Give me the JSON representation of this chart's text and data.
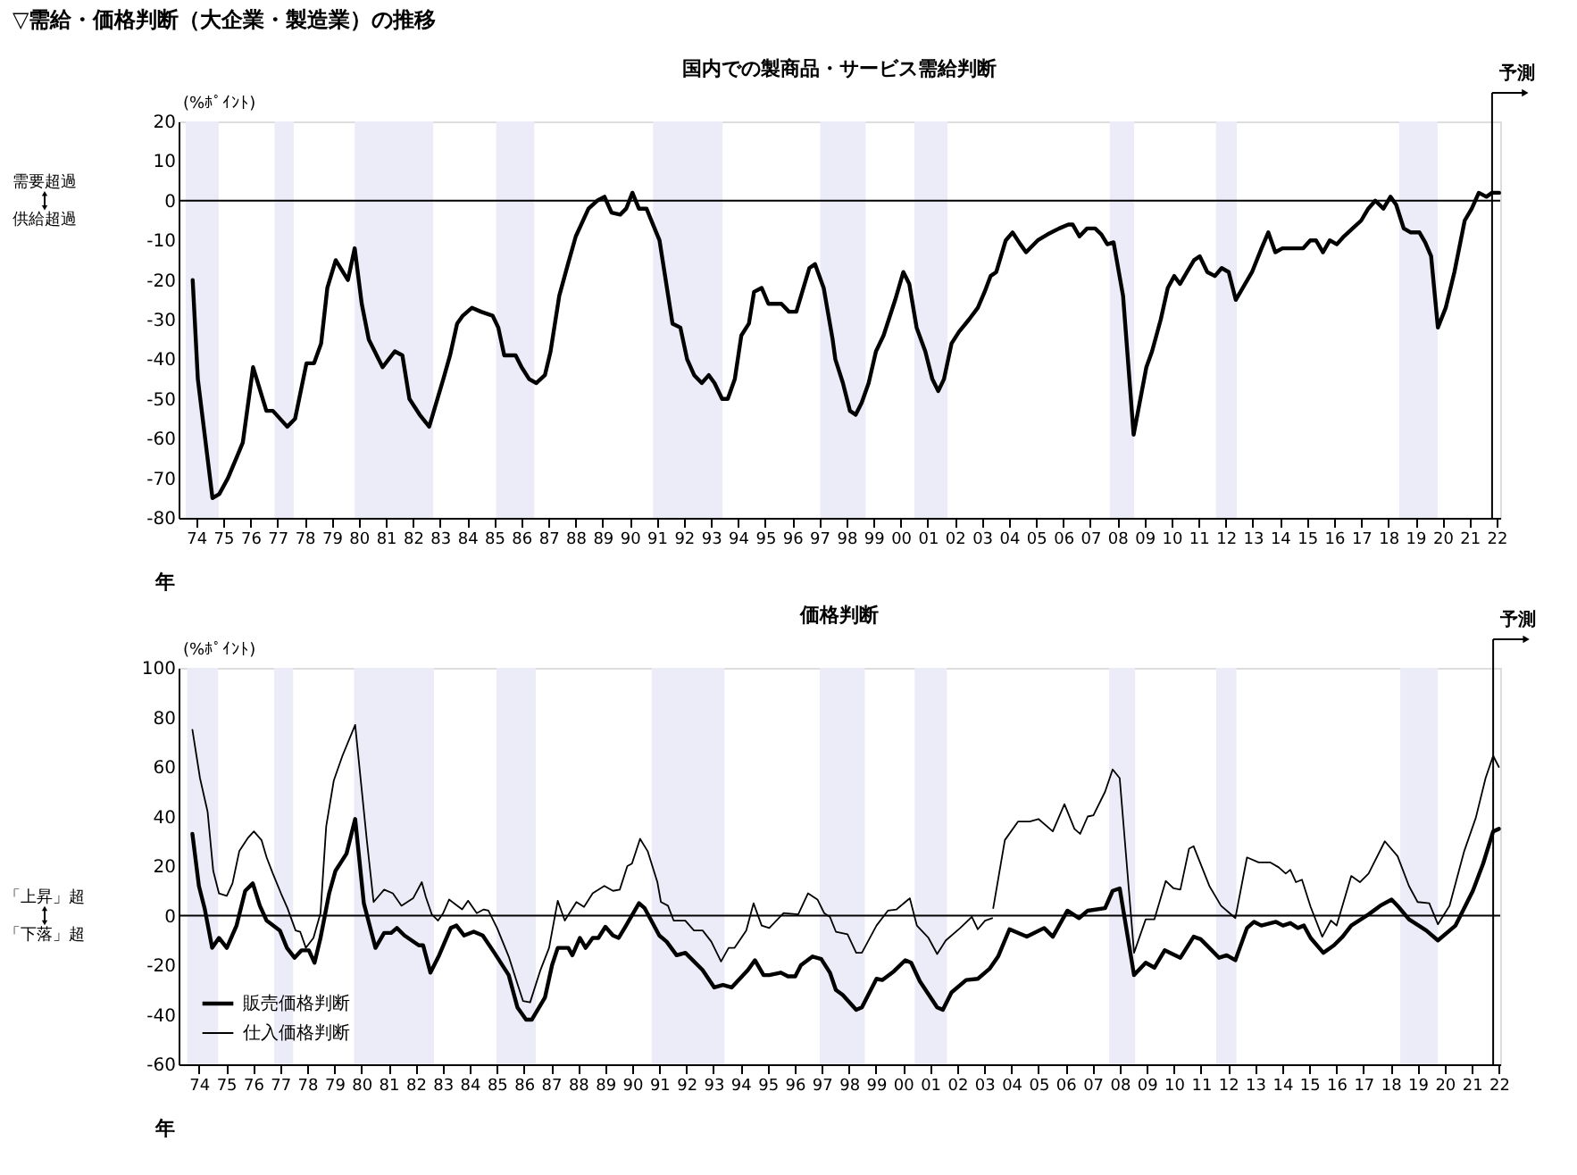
{
  "chart_data": [
    {
      "type": "line",
      "title": "国内での製商品・サービス需給判断",
      "ylabel": "(%ﾎﾟｲﾝﾄ)",
      "xlabel": "年",
      "annotations": [
        "▽需給・価格判断（大企業・製造業）の推移",
        "需要超過",
        "供給超過"
      ],
      "xlim": [
        1973.35,
        2022.13
      ],
      "ylim": [
        -80,
        20
      ],
      "yticks": [
        -80,
        -70,
        -60,
        -50,
        -40,
        -30,
        -20,
        -10,
        0,
        10,
        20
      ],
      "xticks": [
        {
          "value": 1974,
          "label": "74"
        },
        {
          "value": 1975,
          "label": "75"
        },
        {
          "value": 1976,
          "label": "76"
        },
        {
          "value": 1977,
          "label": "77"
        },
        {
          "value": 1978,
          "label": "78"
        },
        {
          "value": 1979,
          "label": "79"
        },
        {
          "value": 1980,
          "label": "80"
        },
        {
          "value": 1981,
          "label": "81"
        },
        {
          "value": 1982,
          "label": "82"
        },
        {
          "value": 1983,
          "label": "83"
        },
        {
          "value": 1984,
          "label": "84"
        },
        {
          "value": 1985,
          "label": "85"
        },
        {
          "value": 1986,
          "label": "86"
        },
        {
          "value": 1987,
          "label": "87"
        },
        {
          "value": 1988,
          "label": "88"
        },
        {
          "value": 1989,
          "label": "89"
        },
        {
          "value": 1990,
          "label": "90"
        },
        {
          "value": 1991,
          "label": "91"
        },
        {
          "value": 1992,
          "label": "92"
        },
        {
          "value": 1993,
          "label": "93"
        },
        {
          "value": 1994,
          "label": "94"
        },
        {
          "value": 1995,
          "label": "95"
        },
        {
          "value": 1996,
          "label": "96"
        },
        {
          "value": 1997,
          "label": "97"
        },
        {
          "value": 1998,
          "label": "98"
        },
        {
          "value": 1999,
          "label": "99"
        },
        {
          "value": 2000,
          "label": "00"
        },
        {
          "value": 2001,
          "label": "01"
        },
        {
          "value": 2002,
          "label": "02"
        },
        {
          "value": 2003,
          "label": "03"
        },
        {
          "value": 2004,
          "label": "04"
        },
        {
          "value": 2005,
          "label": "05"
        },
        {
          "value": 2006,
          "label": "06"
        },
        {
          "value": 2007,
          "label": "07"
        },
        {
          "value": 2008,
          "label": "08"
        },
        {
          "value": 2009,
          "label": "09"
        },
        {
          "value": 2010,
          "label": "10"
        },
        {
          "value": 2011,
          "label": "11"
        },
        {
          "value": 2012,
          "label": "12"
        },
        {
          "value": 2013,
          "label": "13"
        },
        {
          "value": 2014,
          "label": "14"
        },
        {
          "value": 2015,
          "label": "15"
        },
        {
          "value": 2016,
          "label": "16"
        },
        {
          "value": 2017,
          "label": "17"
        },
        {
          "value": 2018,
          "label": "18"
        },
        {
          "value": 2019,
          "label": "19"
        },
        {
          "value": 2020,
          "label": "20"
        },
        {
          "value": 2021,
          "label": "21"
        },
        {
          "value": 2022,
          "label": "22"
        }
      ],
      "grid": false,
      "legend": false,
      "series": [
        {
          "color": "#000000",
          "x": [
            1973.87,
            1974.06,
            1974.6,
            1974.85,
            1975.17,
            1975.54,
            1975.72,
            1976.1,
            1976.59,
            1976.83,
            1977.36,
            1977.65,
            1978.07,
            1978.35,
            1978.61,
            1978.84,
            1979.15,
            1979.6,
            1979.85,
            1980.11,
            1980.37,
            1980.88,
            1981.33,
            1981.61,
            1981.87,
            1982.25,
            1982.6,
            1983.12,
            1983.37,
            1983.63,
            1983.84,
            1984.18,
            1984.51,
            1984.94,
            1985.15,
            1985.37,
            1985.79,
            1986.01,
            1986.29,
            1986.55,
            1986.87,
            1987.08,
            1987.4,
            1987.72,
            1988.01,
            1988.48,
            1988.8,
            1989.07,
            1989.33,
            1989.65,
            1989.87,
            1990.1,
            1990.34,
            1990.62,
            1991.1,
            1991.58,
            1991.87,
            1992.12,
            1992.38,
            1992.66,
            1992.92,
            1993.13,
            1993.41,
            1993.62,
            1993.88,
            1994.12,
            1994.4,
            1994.59,
            1994.87,
            1995.12,
            1995.6,
            1995.88,
            1996.15,
            1996.63,
            1996.84,
            1997.16,
            1997.49,
            1997.59,
            1997.87,
            1998.13,
            1998.34,
            1998.56,
            1998.82,
            1999.09,
            1999.37,
            1999.8,
            2000.1,
            2000.32,
            2000.59,
            2000.91,
            2001.17,
            2001.39,
            2001.6,
            2001.88,
            2002.16,
            2002.52,
            2002.85,
            2003.1,
            2003.32,
            2003.53,
            2003.88,
            2004.13,
            2004.42,
            2004.63,
            2005.06,
            2005.42,
            2005.85,
            2006.19,
            2006.35,
            2006.6,
            2006.88,
            2007.18,
            2007.41,
            2007.63,
            2007.86,
            2008.21,
            2008.6,
            2009.07,
            2009.28,
            2009.6,
            2009.86,
            2010.1,
            2010.31,
            2010.57,
            2010.83,
            2011.04,
            2011.32,
            2011.6,
            2011.85,
            2012.11,
            2012.37,
            2012.63,
            2012.97,
            2013.32,
            2013.57,
            2013.83,
            2014.09,
            2014.86,
            2015.12,
            2015.33,
            2015.59,
            2015.84,
            2016.1,
            2016.36,
            2016.68,
            2017.0,
            2017.26,
            2017.52,
            2017.82,
            2018.08,
            2018.29,
            2018.57,
            2018.83,
            2019.15,
            2019.36,
            2019.58,
            2019.83,
            2020.12,
            2020.44,
            2020.82,
            2021.08,
            2021.34,
            2021.62,
            2021.83,
            2022.09
          ],
          "values": [
            -20,
            -45,
            -75,
            -74,
            -70,
            -64,
            -61,
            -42,
            -53,
            -53,
            -57,
            -55,
            -41,
            -41,
            -36,
            -22,
            -15,
            -20,
            -12,
            -26,
            -35,
            -42,
            -38,
            -39,
            -50,
            -54,
            -57,
            -45,
            -39,
            -31,
            -29,
            -27,
            -28,
            -29,
            -32,
            -39,
            -39,
            -42,
            -45,
            -46,
            -44,
            -38,
            -24,
            -16,
            -9,
            -2,
            0,
            1,
            -3,
            -3.5,
            -2,
            2,
            -2,
            -2,
            -10,
            -31,
            -32,
            -40,
            -44,
            -46,
            -44,
            -46,
            -50,
            -50,
            -45,
            -34,
            -31,
            -23,
            -22,
            -26,
            -26,
            -28,
            -28,
            -17,
            -16,
            -22,
            -35,
            -40,
            -46,
            -53,
            -54,
            -51,
            -46,
            -38,
            -34,
            -25,
            -18,
            -21,
            -32,
            -38,
            -45,
            -48,
            -45,
            -36,
            -33,
            -30,
            -27,
            -23,
            -19,
            -18,
            -10,
            -8,
            -11,
            -13,
            -10,
            -8.5,
            -7,
            -6,
            -6,
            -9,
            -7,
            -7,
            -8.5,
            -11,
            -10.5,
            -24,
            -59,
            -42,
            -38,
            -30,
            -22,
            -19,
            -21,
            -18,
            -15,
            -14,
            -18,
            -19,
            -17,
            -18,
            -25,
            -22,
            -18,
            -12,
            -8,
            -13,
            -12,
            -12,
            -10,
            -10,
            -13,
            -10,
            -11,
            -9,
            -7,
            -5,
            -2,
            0,
            -2,
            1,
            -1,
            -7,
            -8,
            -8,
            -10.5,
            -14,
            -32,
            -27,
            -18,
            -5,
            -2,
            2,
            1,
            2,
            2
          ]
        }
      ],
      "bands": [
        {
          "axis": "x",
          "from": 1973.61,
          "to": 1974.83,
          "color": "#ececf8"
        },
        {
          "axis": "x",
          "from": 1976.89,
          "to": 1977.6,
          "color": "#ececf8"
        },
        {
          "axis": "x",
          "from": 1979.85,
          "to": 1982.75,
          "color": "#ececf8"
        },
        {
          "axis": "x",
          "from": 1985.07,
          "to": 1986.48,
          "color": "#ececf8"
        },
        {
          "axis": "x",
          "from": 1990.86,
          "to": 1993.43,
          "color": "#ececf8"
        },
        {
          "axis": "x",
          "from": 1997.03,
          "to": 1998.71,
          "color": "#ececf8"
        },
        {
          "axis": "x",
          "from": 2000.51,
          "to": 2001.73,
          "color": "#ececf8"
        },
        {
          "axis": "x",
          "from": 2007.72,
          "to": 2008.62,
          "color": "#ececf8"
        },
        {
          "axis": "x",
          "from": 2011.64,
          "to": 2012.41,
          "color": "#ececf8"
        },
        {
          "axis": "x",
          "from": 2018.4,
          "to": 2019.82,
          "color": "#ececf8"
        }
      ],
      "ref_lines": [
        {
          "axis": "y",
          "value": 0,
          "color": "#000000"
        },
        {
          "axis": "x",
          "value": 2021.83,
          "label": "予測",
          "color": "#000000"
        }
      ]
    },
    {
      "type": "line",
      "title": "価格判断",
      "ylabel": "(%ﾎﾟｲﾝﾄ)",
      "xlabel": "年",
      "annotations": [
        "「上昇」超",
        "「下落」超"
      ],
      "xlim": [
        1973.25,
        2022.05
      ],
      "ylim": [
        -60,
        100
      ],
      "yticks": [
        -60,
        -40,
        -20,
        0,
        20,
        40,
        60,
        80,
        100
      ],
      "xticks": [
        {
          "value": 1974,
          "label": "74"
        },
        {
          "value": 1975,
          "label": "75"
        },
        {
          "value": 1976,
          "label": "76"
        },
        {
          "value": 1977,
          "label": "77"
        },
        {
          "value": 1978,
          "label": "78"
        },
        {
          "value": 1979,
          "label": "79"
        },
        {
          "value": 1980,
          "label": "80"
        },
        {
          "value": 1981,
          "label": "81"
        },
        {
          "value": 1982,
          "label": "82"
        },
        {
          "value": 1983,
          "label": "83"
        },
        {
          "value": 1984,
          "label": "84"
        },
        {
          "value": 1985,
          "label": "85"
        },
        {
          "value": 1986,
          "label": "86"
        },
        {
          "value": 1987,
          "label": "87"
        },
        {
          "value": 1988,
          "label": "88"
        },
        {
          "value": 1989,
          "label": "89"
        },
        {
          "value": 1990,
          "label": "90"
        },
        {
          "value": 1991,
          "label": "91"
        },
        {
          "value": 1992,
          "label": "92"
        },
        {
          "value": 1993,
          "label": "93"
        },
        {
          "value": 1994,
          "label": "94"
        },
        {
          "value": 1995,
          "label": "95"
        },
        {
          "value": 1996,
          "label": "96"
        },
        {
          "value": 1997,
          "label": "97"
        },
        {
          "value": 1998,
          "label": "98"
        },
        {
          "value": 1999,
          "label": "99"
        },
        {
          "value": 2000,
          "label": "00"
        },
        {
          "value": 2001,
          "label": "01"
        },
        {
          "value": 2002,
          "label": "02"
        },
        {
          "value": 2003,
          "label": "03"
        },
        {
          "value": 2004,
          "label": "04"
        },
        {
          "value": 2005,
          "label": "05"
        },
        {
          "value": 2006,
          "label": "06"
        },
        {
          "value": 2007,
          "label": "07"
        },
        {
          "value": 2008,
          "label": "08"
        },
        {
          "value": 2009,
          "label": "09"
        },
        {
          "value": 2010,
          "label": "10"
        },
        {
          "value": 2011,
          "label": "11"
        },
        {
          "value": 2012,
          "label": "12"
        },
        {
          "value": 2013,
          "label": "13"
        },
        {
          "value": 2014,
          "label": "14"
        },
        {
          "value": 2015,
          "label": "15"
        },
        {
          "value": 2016,
          "label": "16"
        },
        {
          "value": 2017,
          "label": "17"
        },
        {
          "value": 2018,
          "label": "18"
        },
        {
          "value": 2019,
          "label": "19"
        },
        {
          "value": 2020,
          "label": "20"
        },
        {
          "value": 2021,
          "label": "21"
        },
        {
          "value": 2022,
          "label": "22"
        }
      ],
      "grid": false,
      "legend": "bottom left",
      "series": [
        {
          "name": "販売価格判断",
          "color": "#000000",
          "x": [
            1973.76,
            1974.0,
            1974.21,
            1974.49,
            1974.74,
            1975.03,
            1975.39,
            1975.71,
            1975.99,
            1976.25,
            1976.5,
            1976.99,
            1977.25,
            1977.53,
            1977.79,
            1978.06,
            1978.27,
            1978.49,
            1978.81,
            1979.04,
            1979.45,
            1979.77,
            1980.09,
            1980.52,
            1980.84,
            1981.1,
            1981.31,
            1981.59,
            1982.12,
            1982.28,
            1982.55,
            1982.87,
            1983.3,
            1983.51,
            1983.79,
            1984.15,
            1984.48,
            1984.91,
            1985.44,
            1985.76,
            1986.08,
            1986.29,
            1986.78,
            1987.04,
            1987.25,
            1987.64,
            1987.79,
            1988.07,
            1988.28,
            1988.54,
            1988.75,
            1989.01,
            1989.29,
            1989.5,
            1989.72,
            1990.25,
            1990.46,
            1991.0,
            1991.27,
            1991.64,
            1991.96,
            1992.6,
            1993.03,
            1993.35,
            1993.67,
            1994.27,
            1994.53,
            1994.85,
            1995.06,
            1995.49,
            1995.75,
            1996.02,
            1996.23,
            1996.66,
            1996.98,
            1997.3,
            1997.52,
            1997.77,
            1998.27,
            1998.48,
            1999.02,
            1999.23,
            1999.66,
            2000.08,
            2000.3,
            2000.62,
            2001.26,
            2001.47,
            2001.79,
            2002.33,
            2002.76,
            2003.19,
            2003.51,
            2003.93,
            2004.57,
            2005.21,
            2005.53,
            2006.07,
            2006.5,
            2006.82,
            2007.46,
            2007.74,
            2008.0,
            2008.53,
            2008.96,
            2009.28,
            2009.66,
            2010.24,
            2010.73,
            2010.99,
            2011.31,
            2011.67,
            2011.95,
            2012.27,
            2012.7,
            2012.96,
            2013.23,
            2013.77,
            2014.03,
            2014.3,
            2014.58,
            2014.8,
            2015.05,
            2015.52,
            2015.91,
            2016.23,
            2016.55,
            2017.19,
            2017.62,
            2018.04,
            2018.26,
            2018.68,
            2019.32,
            2019.75,
            2020.4,
            2021.04,
            2021.42,
            2021.79,
            2022.0
          ],
          "values": [
            33,
            12,
            3,
            -13,
            -9,
            -13,
            -4,
            10,
            13,
            4,
            -2,
            -6,
            -13,
            -17,
            -14,
            -14,
            -19,
            -9,
            9,
            18,
            25,
            39,
            5,
            -13,
            -7,
            -7,
            -5,
            -8,
            -12,
            -12,
            -23,
            -16,
            -5,
            -4,
            -8,
            -6.5,
            -8,
            -15,
            -24,
            -37,
            -42,
            -42,
            -33,
            -20,
            -13,
            -13,
            -16,
            -9,
            -13,
            -9,
            -9,
            -4.5,
            -8,
            -9,
            -5,
            5,
            3,
            -8,
            -10.5,
            -16,
            -15,
            -22,
            -29,
            -28,
            -29,
            -22,
            -18,
            -24,
            -24,
            -23,
            -24.5,
            -24.5,
            -20,
            -16.5,
            -17.5,
            -23,
            -30,
            -32,
            -38,
            -37,
            -25.5,
            -26,
            -22.5,
            -18,
            -19,
            -26.5,
            -37,
            -38,
            -31,
            -26,
            -25.5,
            -21.5,
            -16.5,
            -5.5,
            -8.5,
            -5,
            -8.5,
            2,
            -1,
            2,
            3,
            10,
            11,
            -24,
            -19,
            -21,
            -14,
            -17,
            -8.5,
            -9.5,
            -13,
            -17,
            -16,
            -18,
            -5,
            -2.5,
            -4,
            -2.5,
            -4,
            -3,
            -5,
            -4,
            -9,
            -15,
            -12,
            -8.5,
            -4,
            0.5,
            4,
            6.5,
            4,
            -1.5,
            -6,
            -10,
            -4,
            10,
            21,
            34,
            35
          ]
        },
        {
          "name": "仕入価格判断",
          "color": "#000000",
          "x": [
            1973.76,
            1974.04,
            1974.32,
            1974.53,
            1974.74,
            1975.03,
            1975.24,
            1975.49,
            1975.82,
            1976.03,
            1976.31,
            1976.5,
            1976.73,
            1977.03,
            1977.27,
            1977.57,
            1977.74,
            1977.95,
            1978.23,
            1978.49,
            1978.7,
            1978.98,
            1979.3,
            1979.77,
            1980.2,
            1980.45,
            1980.84,
            1981.16,
            1981.48,
            1981.91,
            1982.23,
            1982.38,
            1982.6,
            1982.83,
            1983.02,
            1983.24,
            1983.72,
            1983.94,
            1984.26,
            1984.52,
            1984.69,
            1985.01,
            1985.44,
            1985.76,
            1985.97,
            1986.23,
            1986.61,
            1986.93,
            1987.25,
            1987.51,
            1987.94,
            1988.22,
            1988.54,
            1988.97,
            1989.29,
            1989.54,
            1989.82,
            1989.99,
            1990.29,
            1990.57,
            1990.93,
            1991.06,
            1991.32,
            1991.53,
            1991.96,
            1992.28,
            1992.6,
            1992.92,
            1993.28,
            1993.56,
            1993.78,
            1994.21,
            1994.48,
            1994.78,
            1995.06,
            1995.59,
            1996.13,
            1996.49,
            1996.84,
            1997.09,
            1997.3,
            1997.52,
            1997.95,
            1998.27,
            1998.48,
            1999.02,
            1999.44,
            1999.76,
            2000.25,
            2000.51,
            2000.94,
            2001.26,
            2001.58,
            2002.11,
            2002.54,
            2002.76,
            2003.03,
            2003.29,
            2003.31,
            2003.33,
            2003.76,
            2004.25,
            2004.68,
            2005.0,
            2005.53,
            2005.96,
            2006.33,
            2006.54,
            2006.82,
            2007.03,
            2007.46,
            2007.74,
            2008.0,
            2008.53,
            2008.96,
            2009.28,
            2009.7,
            2009.99,
            2010.24,
            2010.56,
            2010.73,
            2011.31,
            2011.74,
            2012.27,
            2012.7,
            2013.13,
            2013.55,
            2013.87,
            2014.13,
            2014.3,
            2014.51,
            2014.73,
            2015.05,
            2015.48,
            2015.8,
            2016.01,
            2016.55,
            2016.87,
            2017.19,
            2017.79,
            2018.26,
            2018.68,
            2019.0,
            2019.43,
            2019.75,
            2020.18,
            2020.72,
            2021.15,
            2021.51,
            2021.79,
            2022.0
          ],
          "values": [
            75,
            55.5,
            42,
            18,
            9,
            8,
            13,
            26,
            31.5,
            34,
            30.5,
            23.5,
            17,
            9,
            3,
            -6,
            -6.5,
            -13,
            -9,
            1,
            36,
            54.5,
            64.5,
            77,
            30.5,
            5.5,
            10.5,
            9,
            4,
            7,
            13.5,
            7.5,
            0.5,
            -2,
            1,
            6.5,
            2.5,
            6,
            1,
            2.5,
            2,
            -5,
            -16.5,
            -27.5,
            -34.5,
            -35,
            -22,
            -13,
            6,
            -2,
            5.5,
            3.5,
            9,
            12,
            10,
            10.5,
            20,
            21,
            31,
            26,
            13.5,
            5.5,
            4,
            -2,
            -2,
            -6,
            -6,
            -10.5,
            -18.5,
            -13,
            -13,
            -6,
            5,
            -4,
            -5,
            1,
            0.5,
            9,
            6.5,
            1,
            -0.5,
            -6.5,
            -7.5,
            -15,
            -15,
            -4,
            2,
            2.5,
            7,
            -4,
            -9,
            -15.5,
            -10,
            -5,
            -0.5,
            -5.5,
            -2,
            -1,
            null,
            3,
            30.5,
            38,
            38,
            39,
            34,
            45,
            35,
            33,
            40,
            40.5,
            50,
            59,
            55.5,
            -15,
            -1.5,
            -1.5,
            14,
            11,
            10.5,
            27,
            28,
            12,
            4,
            -1,
            23.5,
            21.5,
            21.5,
            19.5,
            17,
            18.5,
            13.5,
            14.5,
            3.5,
            -8.5,
            -2,
            -4,
            16,
            13.5,
            17,
            30,
            24,
            12,
            5.5,
            5,
            -3.5,
            4,
            26,
            39.5,
            55.5,
            64.5,
            60
          ]
        }
      ],
      "bands": [
        {
          "axis": "x",
          "from": 1973.57,
          "to": 1974.71,
          "color": "#ececf8"
        },
        {
          "axis": "x",
          "from": 1976.78,
          "to": 1977.48,
          "color": "#ececf8"
        },
        {
          "axis": "x",
          "from": 1979.73,
          "to": 1982.68,
          "color": "#ececf8"
        },
        {
          "axis": "x",
          "from": 1984.99,
          "to": 1986.44,
          "color": "#ececf8"
        },
        {
          "axis": "x",
          "from": 1990.72,
          "to": 1993.41,
          "color": "#ececf8"
        },
        {
          "axis": "x",
          "from": 1996.92,
          "to": 1998.59,
          "color": "#ececf8"
        },
        {
          "axis": "x",
          "from": 2000.43,
          "to": 2001.62,
          "color": "#ececf8"
        },
        {
          "axis": "x",
          "from": 2007.61,
          "to": 2008.57,
          "color": "#ececf8"
        },
        {
          "axis": "x",
          "from": 2011.56,
          "to": 2012.31,
          "color": "#ececf8"
        },
        {
          "axis": "x",
          "from": 2018.36,
          "to": 2019.75,
          "color": "#ececf8"
        }
      ],
      "ref_lines": [
        {
          "axis": "y",
          "value": 0,
          "color": "#000000"
        },
        {
          "axis": "x",
          "value": 2021.79,
          "label": "予測",
          "color": "#000000"
        }
      ]
    }
  ]
}
